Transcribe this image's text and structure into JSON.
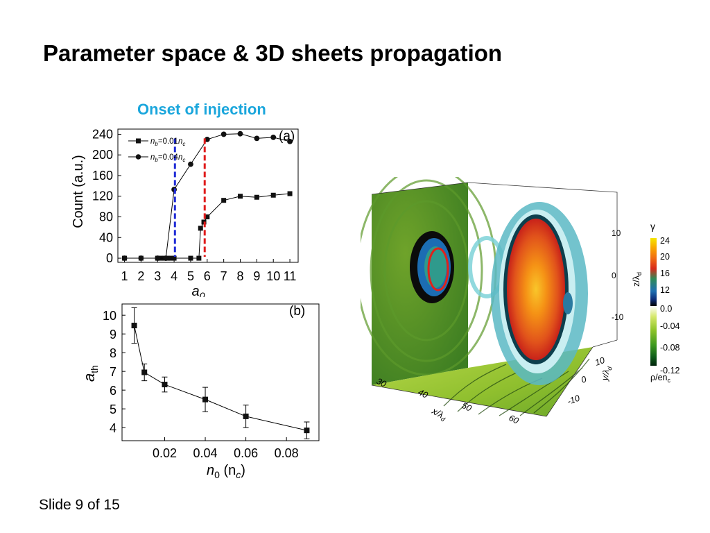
{
  "slide": {
    "title": "Parameter space & 3D sheets propagation",
    "subtitle": "Onset of injection",
    "footer": "Slide 9 of 15"
  },
  "chart_data": [
    {
      "type": "line",
      "panel_label": "(a)",
      "xlabel": "a",
      "xlabel_sub": "0",
      "ylabel": "Count (a.u.)",
      "xlim": [
        0.6,
        11.5
      ],
      "ylim": [
        -8,
        250
      ],
      "xticks": [
        1,
        2,
        3,
        4,
        5,
        6,
        7,
        8,
        9,
        10,
        11
      ],
      "xtick_labels": [
        "1",
        "2",
        "3",
        "4",
        "5",
        "6",
        "7",
        "8",
        "9",
        "10",
        "11"
      ],
      "yticks": [
        0,
        40,
        80,
        120,
        160,
        200,
        240
      ],
      "series": [
        {
          "name": "n_b=0.01n_c",
          "legend_main": "n",
          "legend_sub": "b",
          "legend_rest": "=0.01",
          "legend_italic": "n",
          "legend_sub2": "c",
          "marker": "square",
          "x": [
            1,
            2,
            3,
            3.2,
            3.4,
            3.6,
            3.8,
            4,
            5,
            5.5,
            5.6,
            5.8,
            6,
            7,
            8,
            9,
            10,
            11
          ],
          "y": [
            0,
            0,
            0,
            0,
            0,
            0,
            0,
            0,
            0,
            0,
            58,
            70,
            80,
            112,
            120,
            118,
            122,
            125
          ]
        },
        {
          "name": "n_b=0.04n_c",
          "legend_main": "n",
          "legend_sub": "b",
          "legend_rest": "=0.04",
          "legend_italic": "n",
          "legend_sub2": "c",
          "marker": "circle",
          "x": [
            1,
            2,
            3,
            3.5,
            4,
            5,
            6,
            7,
            8,
            9,
            10,
            11
          ],
          "y": [
            0,
            0,
            0,
            0,
            133,
            182,
            230,
            240,
            241,
            232,
            234,
            226
          ]
        }
      ],
      "vlines": [
        {
          "x": 4.05,
          "color": "#1f2bd6"
        },
        {
          "x": 5.85,
          "color": "#e01b1b"
        }
      ]
    },
    {
      "type": "line",
      "panel_label": "(b)",
      "xlabel": "n",
      "xlabel_sub": "0",
      "xlabel_rest": " (n",
      "xlabel_sub2": "c",
      "xlabel_end": ")",
      "ylabel": "a",
      "ylabel_sub": "th",
      "xlim": [
        -0.001,
        0.096
      ],
      "ylim": [
        3.3,
        10.6
      ],
      "xticks": [
        0.02,
        0.04,
        0.06,
        0.08
      ],
      "yticks": [
        4,
        5,
        6,
        7,
        8,
        9,
        10
      ],
      "series": [
        {
          "marker": "square",
          "x": [
            0.005,
            0.01,
            0.02,
            0.04,
            0.06,
            0.09
          ],
          "y": [
            9.45,
            6.95,
            6.3,
            5.5,
            4.6,
            3.85
          ],
          "err": [
            0.95,
            0.45,
            0.4,
            0.65,
            0.6,
            0.45
          ]
        }
      ]
    }
  ],
  "sim3d": {
    "colorbar": {
      "gamma_label": "γ",
      "gamma_ticks": [
        "24",
        "20",
        "16",
        "12"
      ],
      "rho_ticks": [
        "0.0",
        "-0.04",
        "-0.08",
        "-0.12"
      ],
      "rho_label": "ρ/en",
      "rho_sub": "c",
      "colors_top": [
        "#f5e600",
        "#f9a400",
        "#f06a13",
        "#d82a1a",
        "#2e8b57",
        "#1e6fb2",
        "#0d2e7a",
        "#000000"
      ],
      "colors_bottom": [
        "#ffffff",
        "#d5e86a",
        "#8fc42a",
        "#3f9a1f",
        "#0f5e1a",
        "#00240b"
      ]
    },
    "z_axis": {
      "label": "z/λ",
      "sub": "d",
      "ticks": [
        "10",
        "0",
        "-10"
      ]
    },
    "x_axis": {
      "label": "x/λ",
      "sub": "d",
      "ticks": [
        "30",
        "40",
        "50",
        "60"
      ]
    },
    "y_axis": {
      "label": "y/λ",
      "sub": "d",
      "ticks": [
        "10",
        "0",
        "-10"
      ]
    }
  }
}
